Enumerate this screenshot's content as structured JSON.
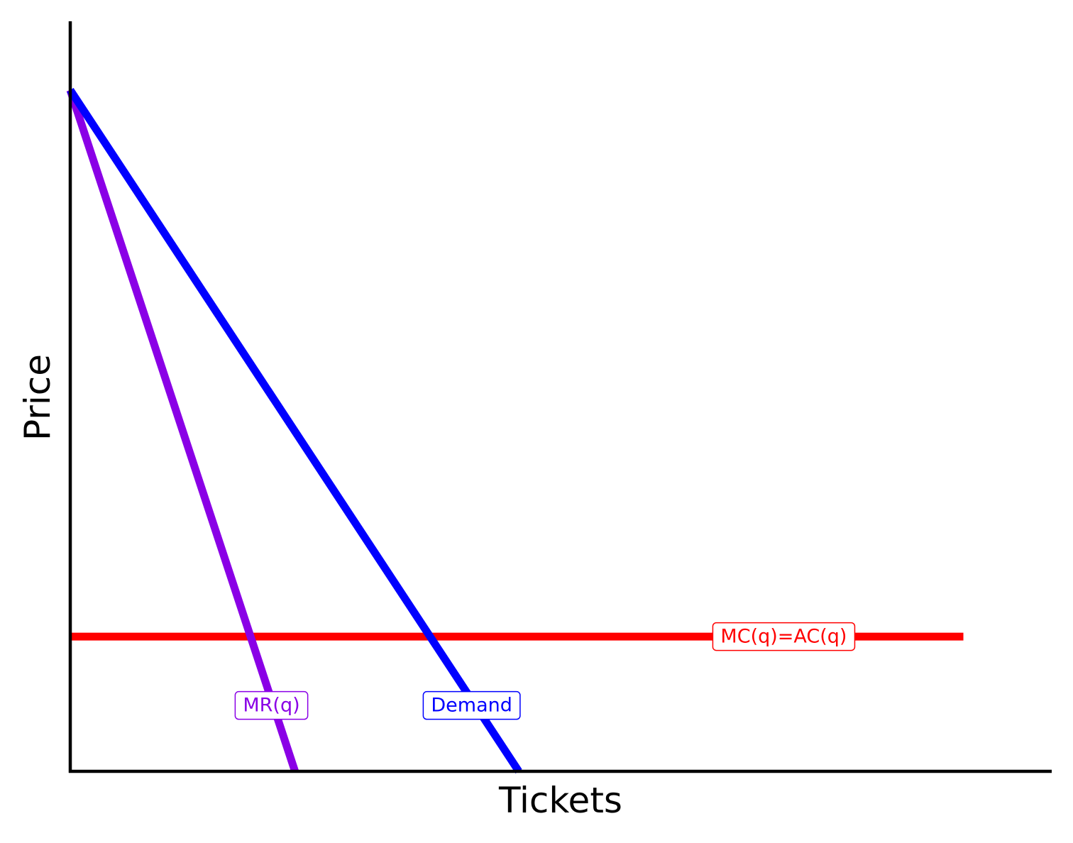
{
  "chart_data": {
    "type": "line",
    "title": "",
    "xlabel": "Tickets",
    "ylabel": "Price",
    "xlim": [
      0,
      1
    ],
    "ylim": [
      0,
      1
    ],
    "grid": false,
    "legend": "none",
    "series": [
      {
        "name": "Demand",
        "color": "#0000ff",
        "points": [
          [
            0.0,
            0.91
          ],
          [
            0.457,
            0.0
          ]
        ]
      },
      {
        "name": "MR(q)",
        "color": "#8a00e6",
        "points": [
          [
            0.0,
            0.91
          ],
          [
            0.229,
            0.0
          ]
        ]
      },
      {
        "name": "MC(q)=AC(q)",
        "color": "#ff0000",
        "points": [
          [
            0.0,
            0.18
          ],
          [
            0.91,
            0.18
          ]
        ]
      }
    ],
    "labels": [
      {
        "text": "MR(q)",
        "series": "MR(q)",
        "x": 0.205,
        "y": 0.088
      },
      {
        "text": "Demand",
        "series": "Demand",
        "x": 0.409,
        "y": 0.088
      },
      {
        "text": "MC(q)=AC(q)",
        "series": "MC(q)=AC(q)",
        "x": 0.727,
        "y": 0.18
      }
    ]
  }
}
